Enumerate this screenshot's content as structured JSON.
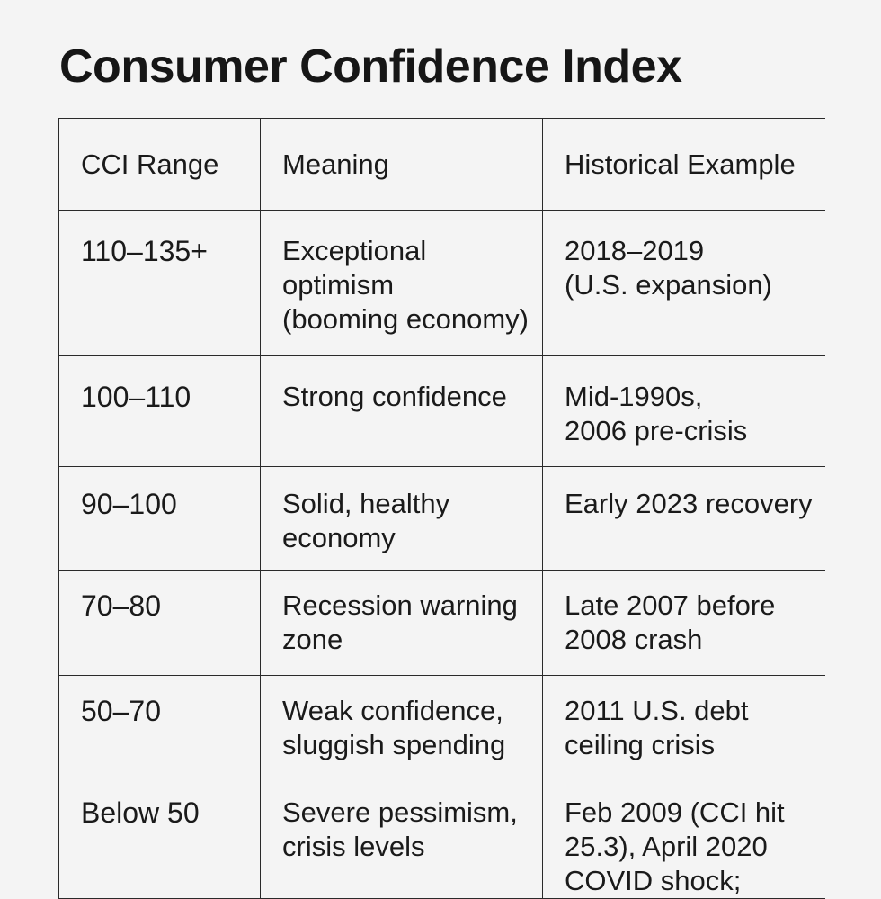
{
  "title": "Consumer Confidence Index",
  "table": {
    "headers": [
      "CCI Range",
      "Meaning",
      "Historical Example"
    ],
    "rows": [
      {
        "range": "110–135+",
        "meaning": "Exceptional\noptimism\n(booming economy)",
        "example": "2018–2019\n(U.S. expansion)"
      },
      {
        "range": "100–110",
        "meaning": "Strong confidence",
        "example": "Mid-1990s,\n2006 pre-crisis"
      },
      {
        "range": "90–100",
        "meaning": "Solid, healthy\neconomy",
        "example": "Early 2023 recovery"
      },
      {
        "range": "70–80",
        "meaning": "Recession warning\nzone",
        "example": "Late 2007 before\n2008 crash"
      },
      {
        "range": "50–70",
        "meaning": "Weak confidence,\nsluggish spending",
        "example": "2011 U.S. debt\nceiling crisis"
      },
      {
        "range": "Below 50",
        "meaning": "Severe pessimism,\ncrisis levels",
        "example": "Feb 2009 (CCI hit\n25.3), April 2020\nCOVID shock;"
      }
    ]
  }
}
